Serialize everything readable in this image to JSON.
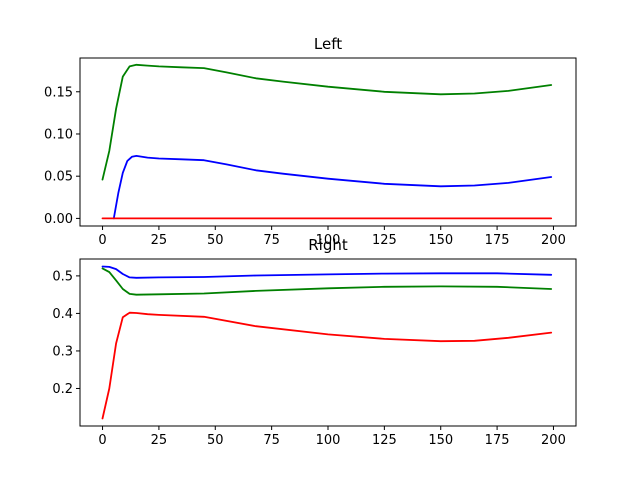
{
  "chart_data": [
    {
      "type": "line",
      "title": "Left",
      "xlabel": "",
      "ylabel": "",
      "xlim": [
        -10,
        210
      ],
      "ylim": [
        -0.009,
        0.19
      ],
      "xticks": [
        0,
        25,
        50,
        75,
        100,
        125,
        150,
        175,
        200
      ],
      "yticks": [
        0.0,
        0.05,
        0.1,
        0.15
      ],
      "xtick_labels": [
        "0",
        "25",
        "50",
        "75",
        "100",
        "125",
        "150",
        "175",
        "200"
      ],
      "ytick_labels": [
        "0.00",
        "0.05",
        "0.10",
        "0.15"
      ],
      "grid": false,
      "series": [
        {
          "color": "#0000ff",
          "x": [
            5,
            7,
            9,
            11,
            13,
            15,
            20,
            25,
            35,
            45,
            55,
            68,
            80,
            100,
            125,
            150,
            165,
            180,
            199
          ],
          "y": [
            0.0,
            0.03,
            0.054,
            0.068,
            0.073,
            0.074,
            0.072,
            0.071,
            0.07,
            0.069,
            0.064,
            0.057,
            0.053,
            0.047,
            0.041,
            0.038,
            0.039,
            0.042,
            0.049
          ]
        },
        {
          "color": "#008000",
          "x": [
            0,
            3,
            6,
            9,
            12,
            15,
            20,
            25,
            35,
            45,
            55,
            68,
            80,
            100,
            125,
            150,
            165,
            180,
            199
          ],
          "y": [
            0.046,
            0.08,
            0.13,
            0.168,
            0.18,
            0.182,
            0.181,
            0.18,
            0.179,
            0.178,
            0.173,
            0.166,
            0.162,
            0.156,
            0.15,
            0.147,
            0.148,
            0.151,
            0.158
          ]
        },
        {
          "color": "#ff0000",
          "x": [
            0,
            199
          ],
          "y": [
            0.0,
            0.0
          ]
        }
      ]
    },
    {
      "type": "line",
      "title": "Right",
      "xlabel": "",
      "ylabel": "",
      "xlim": [
        -10,
        210
      ],
      "ylim": [
        0.1,
        0.545
      ],
      "xticks": [
        0,
        25,
        50,
        75,
        100,
        125,
        150,
        175,
        200
      ],
      "yticks": [
        0.2,
        0.3,
        0.4,
        0.5
      ],
      "xtick_labels": [
        "0",
        "25",
        "50",
        "75",
        "100",
        "125",
        "150",
        "175",
        "200"
      ],
      "ytick_labels": [
        "0.2",
        "0.3",
        "0.4",
        "0.5"
      ],
      "grid": false,
      "series": [
        {
          "color": "#0000ff",
          "x": [
            0,
            3,
            6,
            9,
            12,
            15,
            25,
            45,
            68,
            100,
            125,
            150,
            175,
            199
          ],
          "y": [
            0.525,
            0.524,
            0.518,
            0.505,
            0.496,
            0.495,
            0.496,
            0.497,
            0.501,
            0.504,
            0.506,
            0.507,
            0.507,
            0.503
          ]
        },
        {
          "color": "#008000",
          "x": [
            0,
            3,
            6,
            9,
            12,
            15,
            25,
            45,
            68,
            100,
            125,
            150,
            175,
            199
          ],
          "y": [
            0.52,
            0.51,
            0.488,
            0.465,
            0.452,
            0.45,
            0.451,
            0.453,
            0.46,
            0.467,
            0.471,
            0.472,
            0.471,
            0.465
          ]
        },
        {
          "color": "#ff0000",
          "x": [
            0,
            3,
            6,
            9,
            12,
            15,
            20,
            25,
            45,
            68,
            100,
            125,
            150,
            165,
            180,
            199
          ],
          "y": [
            0.12,
            0.2,
            0.32,
            0.39,
            0.402,
            0.401,
            0.398,
            0.396,
            0.391,
            0.366,
            0.344,
            0.332,
            0.326,
            0.327,
            0.335,
            0.349
          ]
        }
      ]
    }
  ]
}
